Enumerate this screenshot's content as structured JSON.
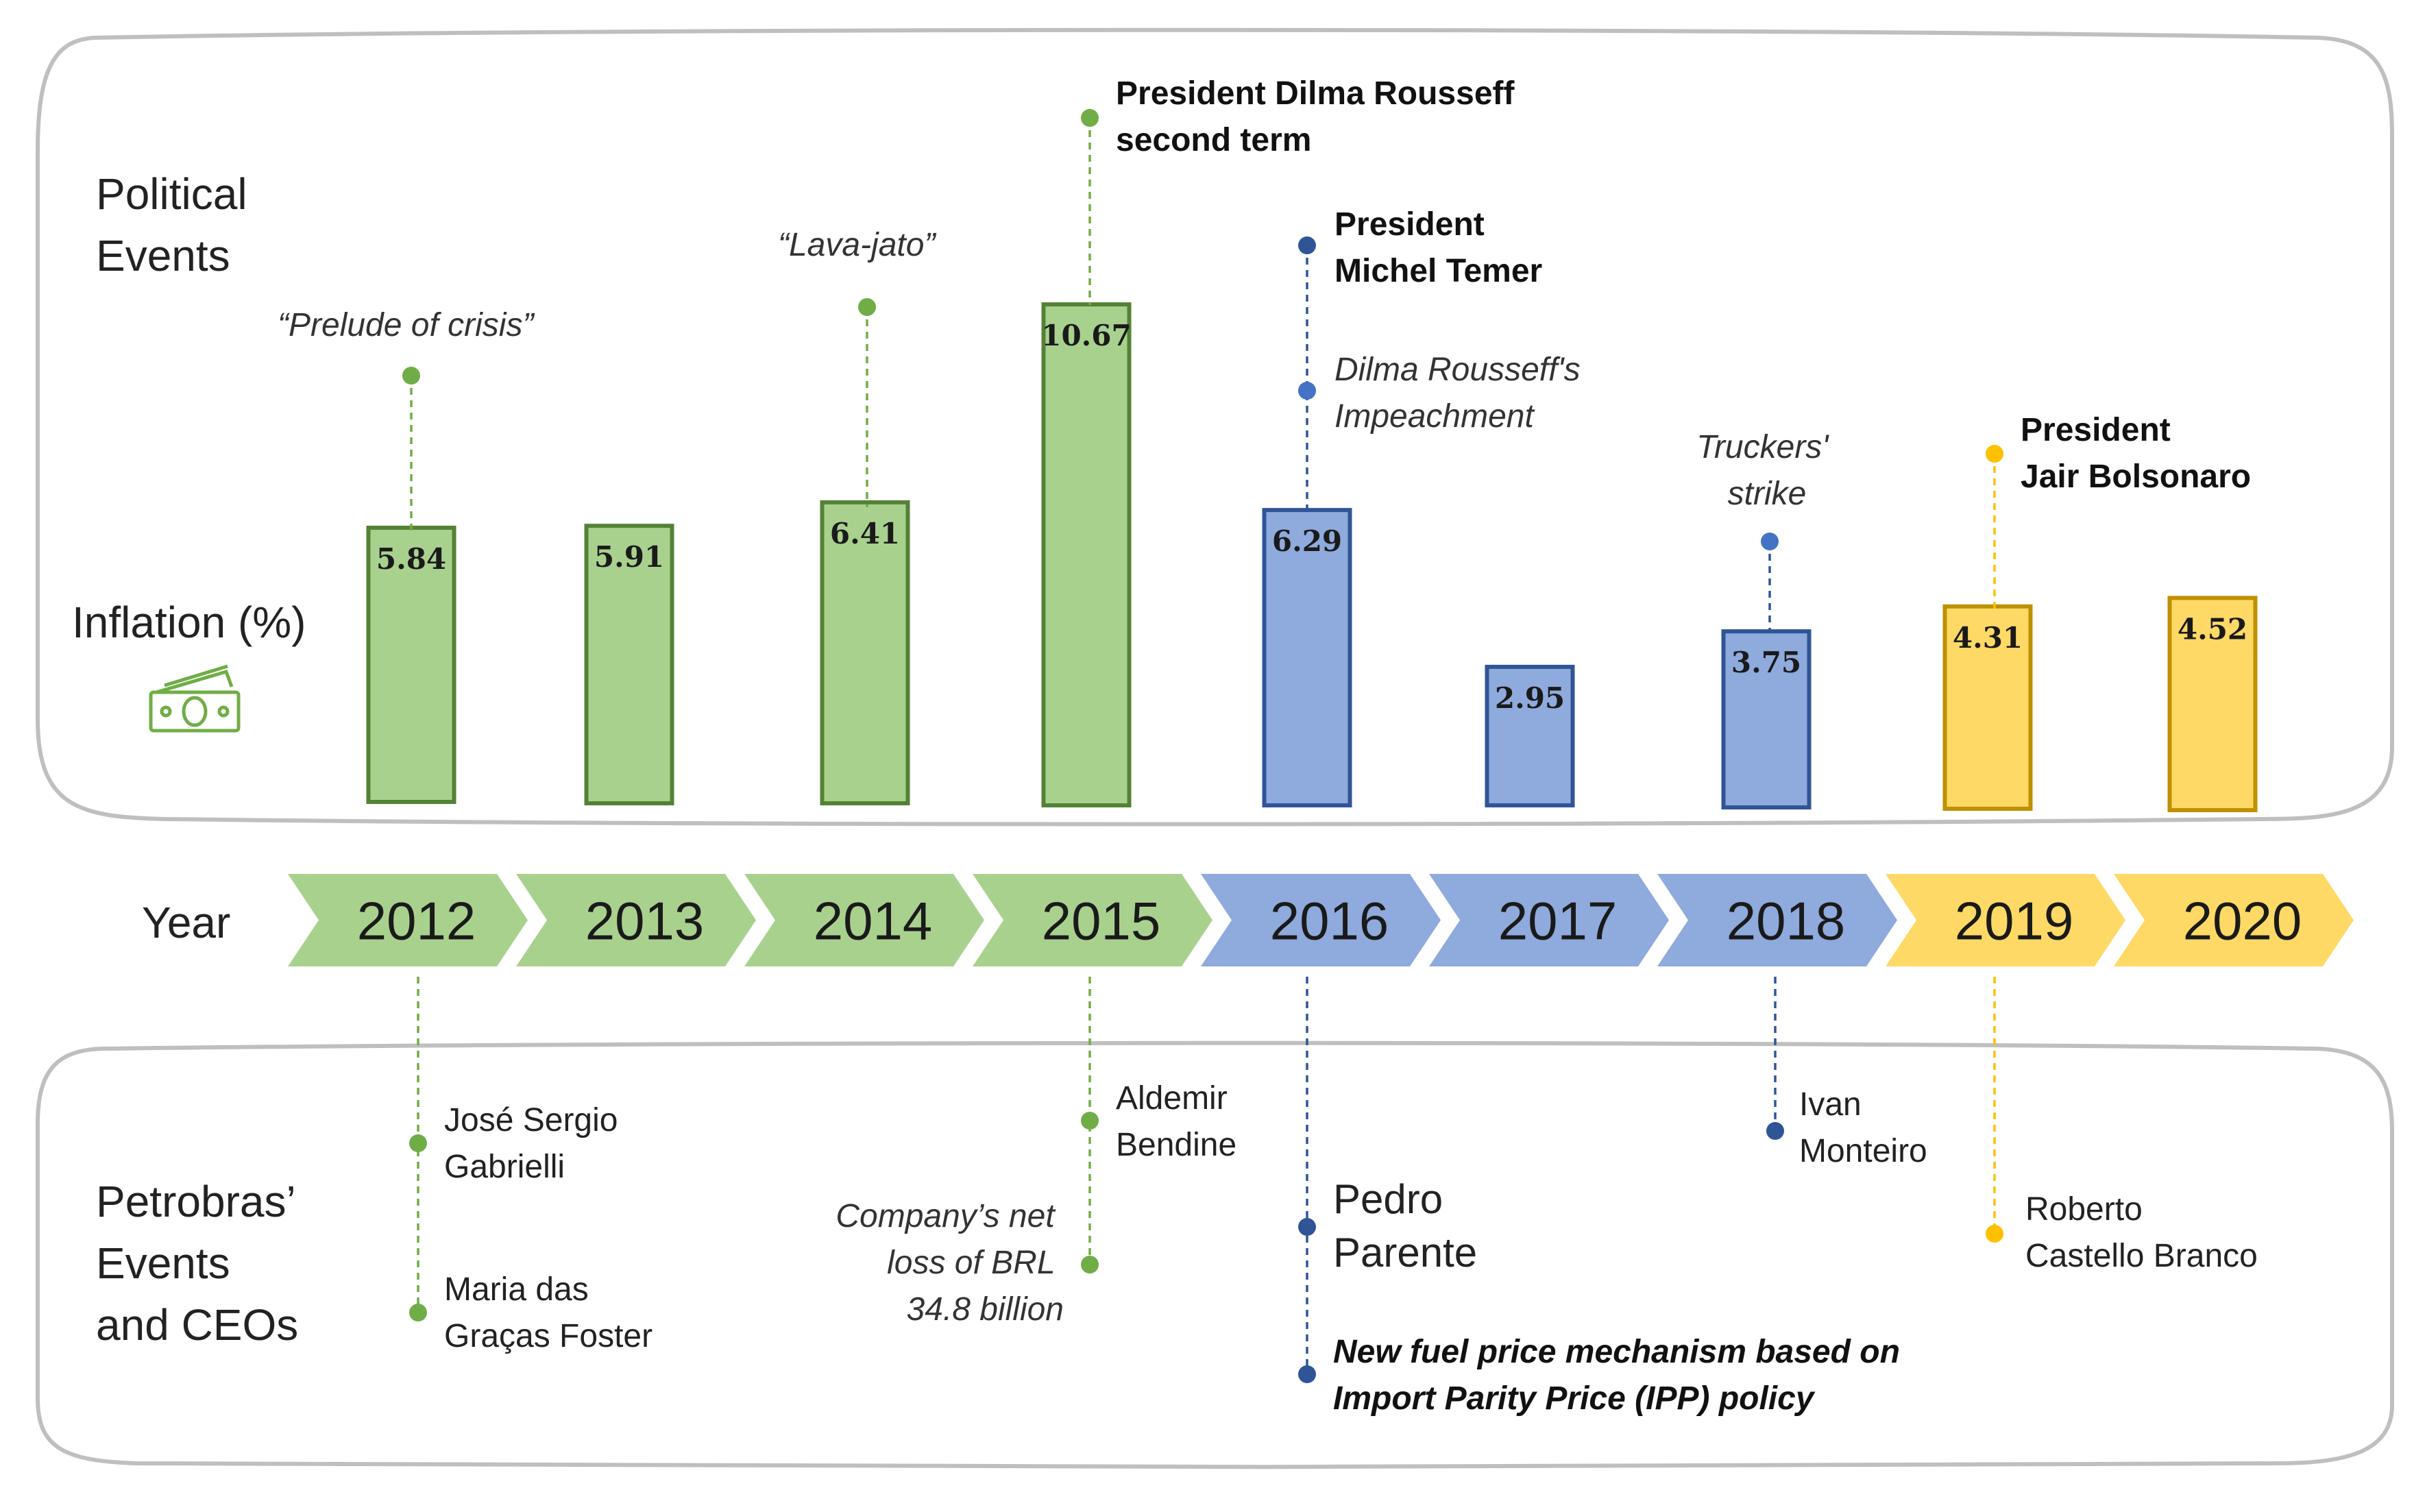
{
  "sections": {
    "political_title": [
      "Political",
      "Events"
    ],
    "inflation_title": "Inflation (%)",
    "year_title": "Year",
    "petrobras_title": [
      "Petrobras’",
      "Events",
      "and CEOs"
    ]
  },
  "colors": {
    "green_fill": "#a9d18e",
    "green_stroke": "#548235",
    "green_dot": "#70ad47",
    "blue_fill": "#8faadc",
    "blue_stroke": "#2f5597",
    "blue_dot": "#2f5597",
    "yellow_fill": "#ffd966",
    "yellow_stroke": "#bf9000",
    "yellow_dot": "#ffc000",
    "panel_border": "#bfbfbf"
  },
  "chart_data": {
    "type": "bar",
    "categories": [
      "2012",
      "2013",
      "2014",
      "2015",
      "2016",
      "2017",
      "2018",
      "2019",
      "2020"
    ],
    "values": [
      5.84,
      5.91,
      6.41,
      10.67,
      6.29,
      2.95,
      3.75,
      4.31,
      4.52
    ],
    "value_labels": [
      "5.84",
      "5.91",
      "6.41",
      "10.67",
      "6.29",
      "2.95",
      "3.75",
      "4.31",
      "4.52"
    ],
    "color_groups": [
      "green",
      "green",
      "green",
      "green",
      "blue",
      "blue",
      "blue",
      "yellow",
      "yellow"
    ],
    "ylabel": "Inflation (%)",
    "xlabel": "Year"
  },
  "political_events": [
    {
      "lines": [
        "“Prelude of crisis”"
      ],
      "style": "italic",
      "color": "green"
    },
    {
      "lines": [
        "“Lava-jato”"
      ],
      "style": "italic",
      "color": "green"
    },
    {
      "lines": [
        "President Dilma Rousseff",
        "second term"
      ],
      "style": "bold",
      "color": "green"
    },
    {
      "lines": [
        "President",
        "Michel Temer"
      ],
      "style": "bold",
      "color": "blue"
    },
    {
      "lines": [
        "Dilma Rousseff's",
        "Impeachment"
      ],
      "style": "italic",
      "color": "blue"
    },
    {
      "lines": [
        "Truckers'",
        "strike"
      ],
      "style": "italic",
      "color": "blue"
    },
    {
      "lines": [
        "President",
        "Jair Bolsonaro"
      ],
      "style": "bold",
      "color": "yellow"
    }
  ],
  "petrobras_events": [
    {
      "lines": [
        "José Sergio",
        "Gabrielli"
      ],
      "style": "normal",
      "color": "green"
    },
    {
      "lines": [
        "Maria das",
        "Graças Foster"
      ],
      "style": "normal",
      "color": "green"
    },
    {
      "lines": [
        "Aldemir",
        "Bendine"
      ],
      "style": "normal",
      "color": "green"
    },
    {
      "lines": [
        "Company’s net",
        "loss of BRL",
        "34.8 billion"
      ],
      "style": "italic",
      "color": "green"
    },
    {
      "lines": [
        "Pedro",
        "Parente"
      ],
      "style": "large",
      "color": "blue"
    },
    {
      "lines": [
        "New fuel price mechanism based on",
        "Import Parity Price (IPP) policy"
      ],
      "style": "bold-italic",
      "color": "blue"
    },
    {
      "lines": [
        "Ivan",
        "Monteiro"
      ],
      "style": "normal",
      "color": "blue"
    },
    {
      "lines": [
        "Roberto",
        "Castello Branco"
      ],
      "style": "normal",
      "color": "yellow"
    }
  ]
}
